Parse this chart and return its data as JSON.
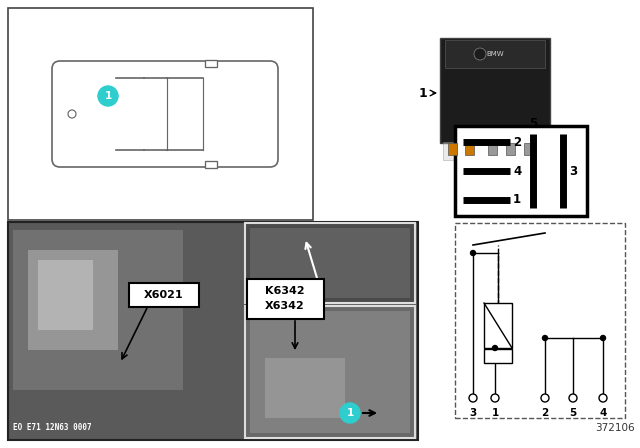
{
  "bg_color": "#ffffff",
  "teal_color": "#2ecece",
  "car_outline_color": "#666666",
  "label_K6342": "K6342",
  "label_X6342": "X6342",
  "label_X6021": "X6021",
  "label_EO": "EO E71 12N63 0007",
  "label_ref": "372106",
  "part_number": "1",
  "relay_pin_labels_left": [
    "2",
    "4",
    "1"
  ],
  "relay_pin_center": "5",
  "relay_pin_right": "3",
  "circuit_pins": [
    "3",
    "1",
    "2",
    "5",
    "4"
  ],
  "fig_w": 6.4,
  "fig_h": 4.48,
  "dpi": 100
}
